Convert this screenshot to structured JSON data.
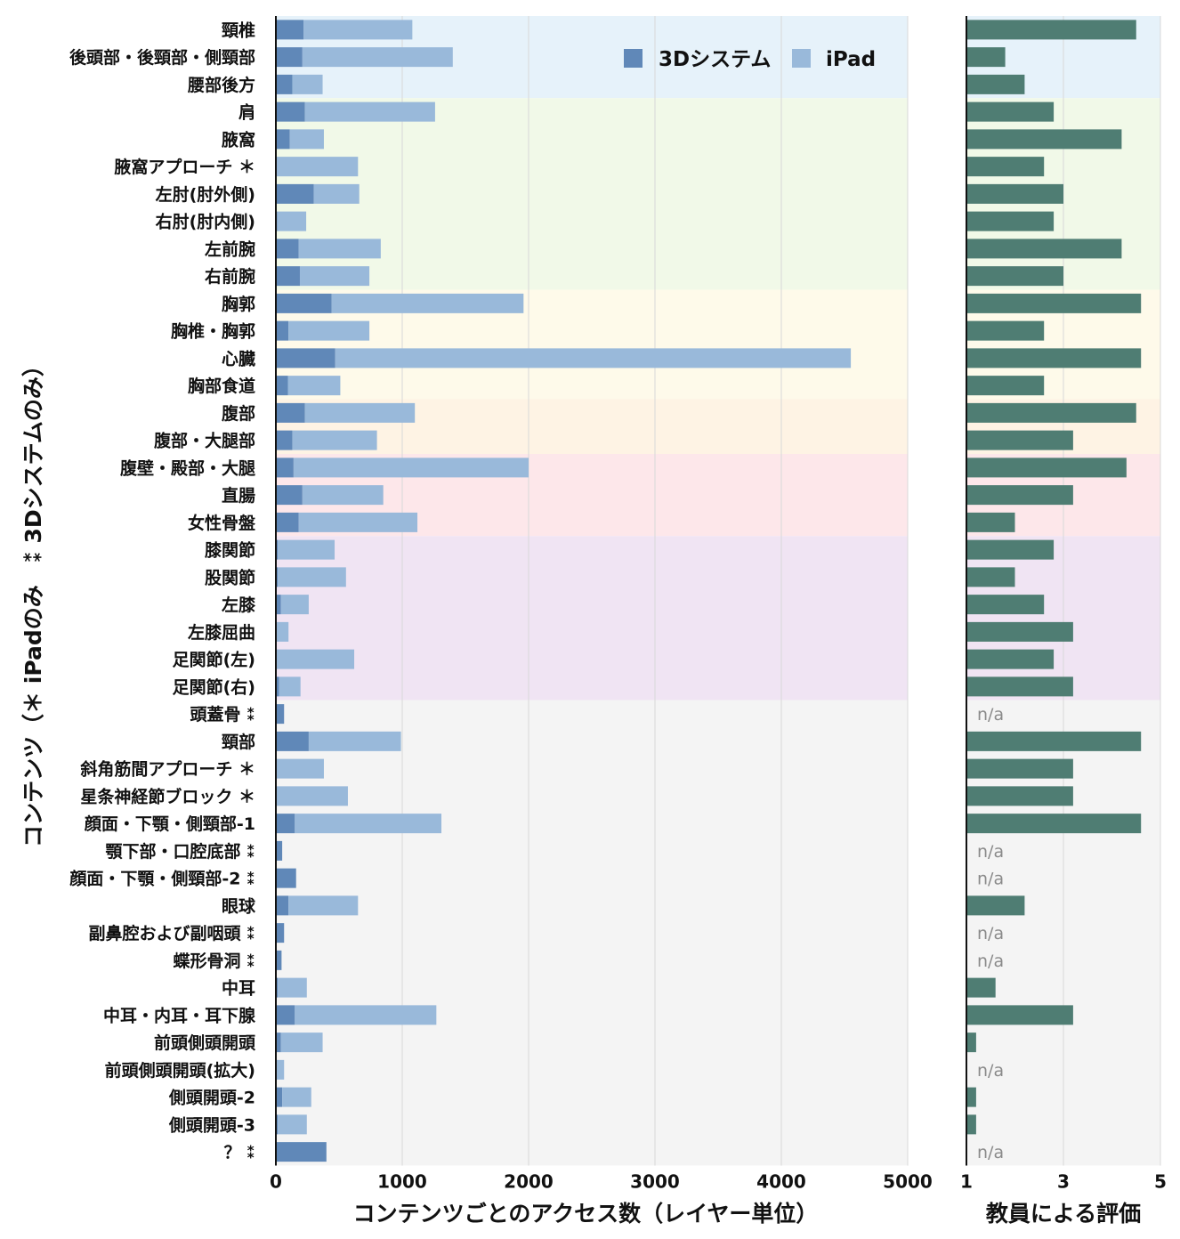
{
  "chart_data": [
    {
      "type": "bar",
      "orientation": "horizontal",
      "stacked": true,
      "categories": [
        "頸椎",
        "後頭部・後頸部・側頸部",
        "腰部後方",
        "肩",
        "腋窩",
        "腋窩アプローチ ＊",
        "左肘(肘外側)",
        "右肘(肘内側)",
        "左前腕",
        "右前腕",
        "胸郭",
        "胸椎・胸郭",
        "心臓",
        "胸部食道",
        "腹部",
        "腹部・大腿部",
        "腹壁・殿部・大腿",
        "直腸",
        "女性骨盤",
        "膝関節",
        "股関節",
        "左膝",
        "左膝屈曲",
        "足関節(左)",
        "足関節(右)",
        "頭蓋骨 ⁑",
        "頸部",
        "斜角筋間アプローチ ＊",
        "星条神経節ブロック ＊",
        "顔面・下顎・側頸部-1",
        "顎下部・口腔底部 ⁑",
        "顔面・下顎・側頸部-2 ⁑",
        "眼球",
        "副鼻腔および副咽頭 ⁑",
        "蝶形骨洞 ⁑",
        "中耳",
        "中耳・内耳・耳下腺",
        "前頭側頭開頭",
        "前頭側頭開頭(拡大)",
        "側頭開頭-2",
        "側頭開頭-3",
        "？ ⁑"
      ],
      "series": [
        {
          "name": "3Dシステム",
          "color": "#6088b8",
          "values": [
            220,
            210,
            130,
            230,
            110,
            0,
            300,
            10,
            180,
            190,
            440,
            100,
            470,
            95,
            230,
            130,
            140,
            210,
            180,
            15,
            15,
            40,
            0,
            0,
            25,
            65,
            260,
            0,
            0,
            150,
            50,
            160,
            100,
            65,
            45,
            15,
            150,
            40,
            0,
            50,
            15,
            400
          ]
        },
        {
          "name": "iPad",
          "color": "#99b9da",
          "values": [
            860,
            1190,
            240,
            1030,
            270,
            650,
            360,
            230,
            650,
            550,
            1520,
            640,
            4080,
            415,
            870,
            670,
            1860,
            640,
            940,
            450,
            540,
            220,
            100,
            620,
            170,
            0,
            730,
            380,
            570,
            1160,
            0,
            0,
            550,
            0,
            0,
            230,
            1120,
            330,
            65,
            230,
            230,
            0
          ]
        }
      ],
      "xlim": [
        0,
        5000
      ],
      "xticks": [
        "0",
        "1000",
        "2000",
        "3000",
        "4000",
        "5000"
      ],
      "xlabel": "コンテンツごとのアクセス数（レイヤー単位）",
      "ylabel": "コンテンツ（＊ iPadのみ　⁑ 3Dシステムのみ）",
      "legend_position": "top-right",
      "grid": "vertical",
      "region_bands": [
        {
          "color": "#e6f2fa",
          "from": 0,
          "to": 2
        },
        {
          "color": "#f1f9e8",
          "from": 3,
          "to": 9
        },
        {
          "color": "#fefaea",
          "from": 10,
          "to": 13
        },
        {
          "color": "#fef3e4",
          "from": 14,
          "to": 15
        },
        {
          "color": "#fde7ea",
          "from": 16,
          "to": 18
        },
        {
          "color": "#f0e4f3",
          "from": 19,
          "to": 24
        },
        {
          "color": "#f4f4f4",
          "from": 25,
          "to": 41
        }
      ]
    },
    {
      "type": "bar",
      "orientation": "horizontal",
      "series": [
        {
          "name": "",
          "color": "#4f7d73",
          "values": [
            4.5,
            1.8,
            2.2,
            2.8,
            4.2,
            2.6,
            3.0,
            2.8,
            4.2,
            3.0,
            4.6,
            2.6,
            4.6,
            2.6,
            4.5,
            3.2,
            4.3,
            3.2,
            2.0,
            2.8,
            2.0,
            2.6,
            3.2,
            2.8,
            3.2,
            null,
            4.6,
            3.2,
            3.2,
            4.6,
            null,
            null,
            2.2,
            null,
            null,
            1.6,
            3.2,
            1.2,
            null,
            1.2,
            1.2,
            null
          ]
        }
      ],
      "missing_label": "n/a",
      "xlim": [
        1,
        5
      ],
      "xticks": [
        "1",
        "3",
        "5"
      ],
      "xlabel": "教員による評価"
    }
  ],
  "legend": {
    "items": [
      {
        "label": "3Dシステム",
        "color": "#6088b8"
      },
      {
        "label": "iPad",
        "color": "#99b9da"
      }
    ]
  }
}
